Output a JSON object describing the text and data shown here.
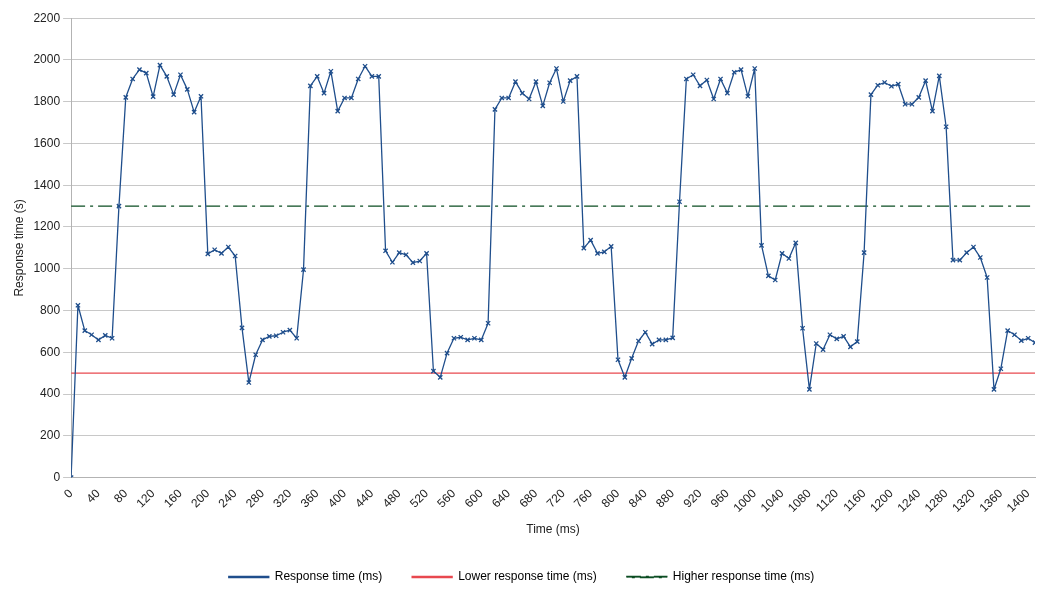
{
  "chart_data": {
    "type": "line",
    "xlabel": "Time (ms)",
    "ylabel": "Response time (s)",
    "x": [
      0,
      10,
      20,
      30,
      40,
      50,
      60,
      70,
      80,
      90,
      100,
      110,
      120,
      130,
      140,
      150,
      160,
      170,
      180,
      190,
      200,
      210,
      220,
      230,
      240,
      250,
      260,
      270,
      280,
      290,
      300,
      310,
      320,
      330,
      340,
      350,
      360,
      370,
      380,
      390,
      400,
      410,
      420,
      430,
      440,
      450,
      460,
      470,
      480,
      490,
      500,
      510,
      520,
      530,
      540,
      550,
      560,
      570,
      580,
      590,
      600,
      610,
      620,
      630,
      640,
      650,
      660,
      670,
      680,
      690,
      700,
      710,
      720,
      730,
      740,
      750,
      760,
      770,
      780,
      790,
      800,
      810,
      820,
      830,
      840,
      850,
      860,
      870,
      880,
      890,
      900,
      910,
      920,
      930,
      940,
      950,
      960,
      970,
      980,
      990,
      1000,
      1010,
      1020,
      1030,
      1040,
      1050,
      1060,
      1070,
      1080,
      1090,
      1100,
      1110,
      1120,
      1130,
      1140,
      1150,
      1160,
      1170,
      1180,
      1190,
      1200,
      1210,
      1220,
      1230,
      1240,
      1250,
      1260,
      1270,
      1280,
      1290,
      1300,
      1310,
      1320,
      1330,
      1340,
      1350,
      1360,
      1370,
      1380,
      1390,
      1400,
      1410
    ],
    "series": [
      {
        "name": "Response time (ms)",
        "color": "#1f4e8c",
        "values": [
          0,
          825,
          704,
          684,
          659,
          681,
          667,
          1300,
          1821,
          1909,
          1954,
          1937,
          1824,
          1975,
          1921,
          1834,
          1929,
          1859,
          1750,
          1826,
          1071,
          1091,
          1074,
          1104,
          1061,
          717,
          455,
          588,
          659,
          676,
          679,
          696,
          706,
          667,
          996,
          1876,
          1921,
          1841,
          1946,
          1755,
          1818,
          1818,
          1909,
          1970,
          1921,
          1921,
          1086,
          1031,
          1077,
          1067,
          1029,
          1037,
          1074,
          510,
          480,
          596,
          667,
          672,
          659,
          667,
          659,
          739,
          1763,
          1818,
          1818,
          1896,
          1841,
          1813,
          1896,
          1780,
          1891,
          1959,
          1801,
          1901,
          1921,
          1099,
          1137,
          1074,
          1081,
          1107,
          564,
          480,
          571,
          654,
          696,
          639,
          659,
          659,
          669,
          1321,
          1909,
          1929,
          1876,
          1904,
          1813,
          1909,
          1841,
          1941,
          1954,
          1826,
          1959,
          1112,
          966,
          946,
          1074,
          1049,
          1124,
          715,
          422,
          642,
          613,
          684,
          664,
          676,
          626,
          651,
          1077,
          1834,
          1879,
          1892,
          1874,
          1884,
          1788,
          1788,
          1821,
          1901,
          1755,
          1924,
          1680,
          1041,
          1041,
          1077,
          1104,
          1054,
          958,
          422,
          521,
          704,
          684,
          656,
          667,
          646
        ]
      }
    ],
    "ref_lines": [
      {
        "axis": "y",
        "value": 500,
        "label": "Lower response time (ms)",
        "color": "#e8484f",
        "line_style": "solid"
      },
      {
        "axis": "y",
        "value": 1300,
        "label": "Higher response time (ms)",
        "color": "#0b4d22",
        "line_style": "dashed"
      }
    ],
    "xlim": [
      0,
      1410
    ],
    "xticks": [
      0,
      40,
      80,
      120,
      160,
      200,
      240,
      280,
      320,
      360,
      400,
      440,
      480,
      520,
      560,
      600,
      640,
      680,
      720,
      760,
      800,
      840,
      880,
      920,
      960,
      1000,
      1040,
      1080,
      1120,
      1160,
      1200,
      1240,
      1280,
      1320,
      1360,
      1400
    ],
    "ylim": [
      0,
      2200
    ],
    "yticks": [
      0,
      200,
      400,
      600,
      800,
      1000,
      1200,
      1400,
      1600,
      1800,
      2000,
      2200
    ],
    "grid": "y",
    "legend": "bottom",
    "marker": "cross",
    "line_style": "solid"
  }
}
